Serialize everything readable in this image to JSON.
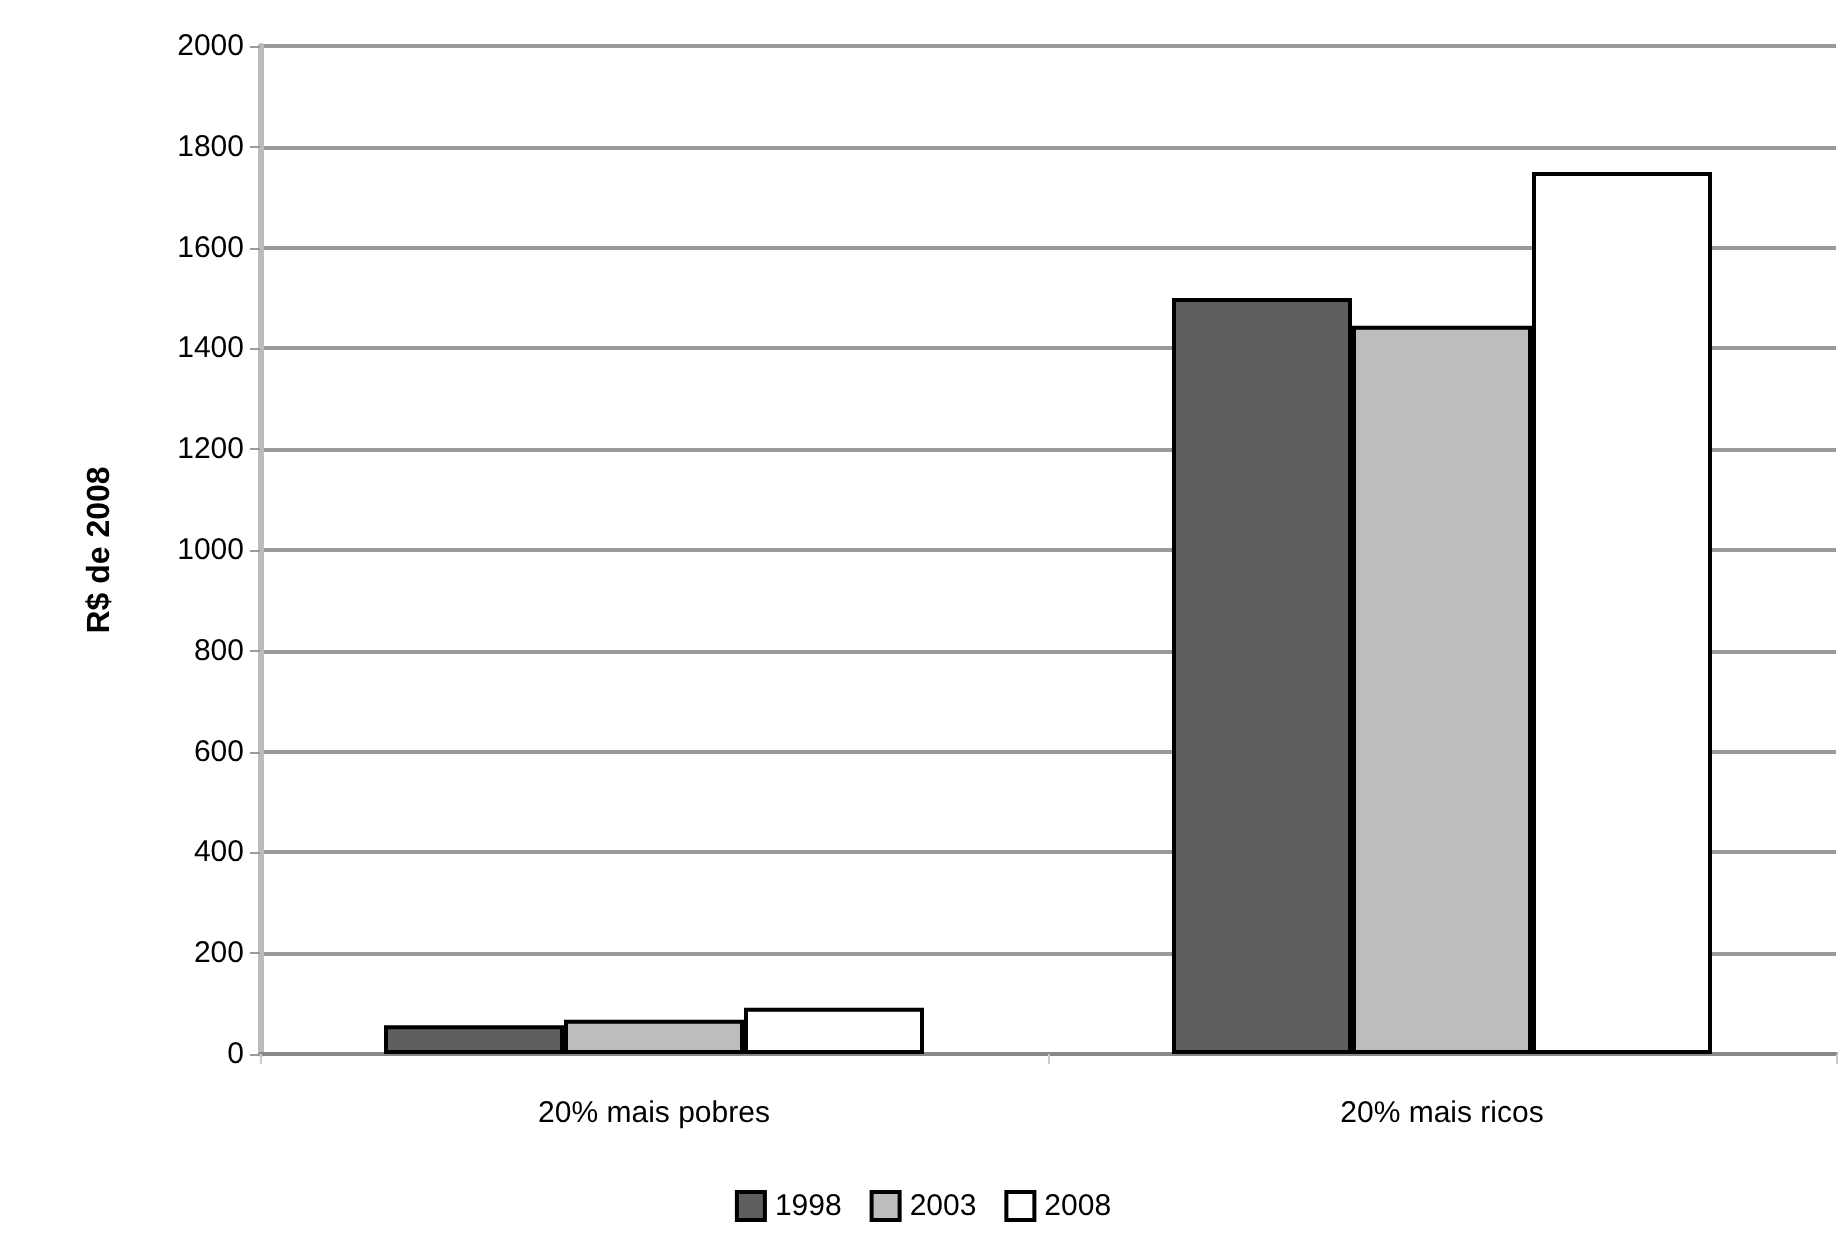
{
  "chart_data": {
    "type": "bar",
    "ylabel": "R$ de 2008",
    "categories": [
      "20% mais pobres",
      "20% mais ricos"
    ],
    "series": [
      {
        "name": "1998",
        "color": "#5f5f5f",
        "values": [
          57,
          1500
        ]
      },
      {
        "name": "2003",
        "color": "#bdbdbd",
        "values": [
          68,
          1445
        ]
      },
      {
        "name": "2008",
        "color": "#ffffff",
        "values": [
          92,
          1750
        ]
      }
    ],
    "ylim": [
      0,
      2000
    ],
    "yticks": [
      0,
      200,
      400,
      600,
      800,
      1000,
      1200,
      1400,
      1600,
      1800,
      2000
    ],
    "grid": "y",
    "legend": "bottom"
  }
}
